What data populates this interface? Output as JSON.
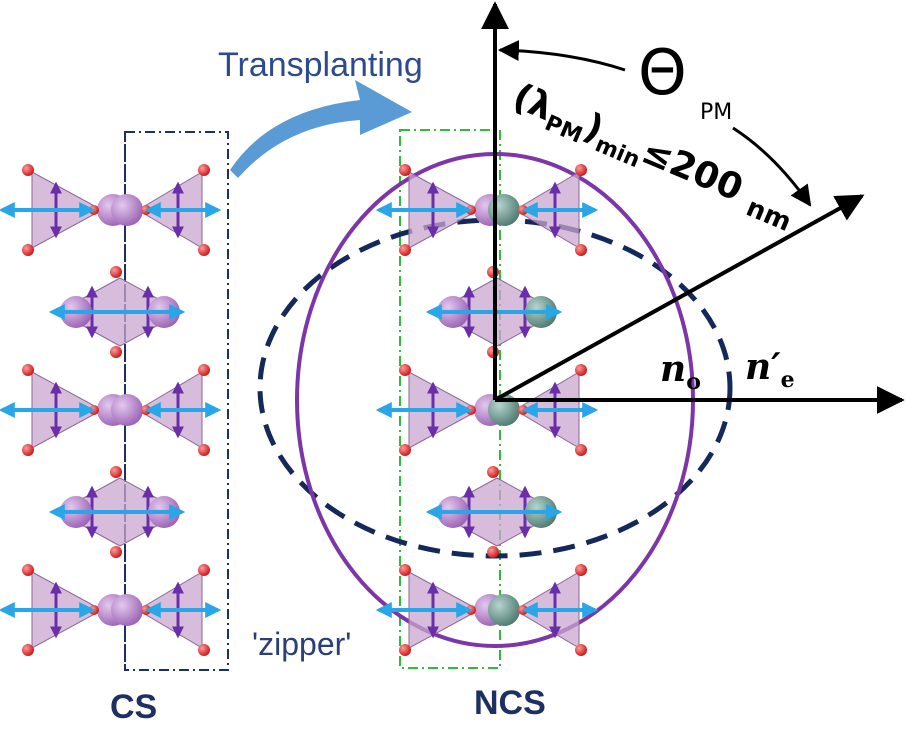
{
  "labels": {
    "transplanting": "Transplanting",
    "zipper": "'zipper'",
    "cs": "CS",
    "ncs": "NCS",
    "theta_symbol": "Θ",
    "theta_sub": "PM",
    "lambda_open": "(λ",
    "lambda_sub": "PM",
    "lambda_close": ")",
    "min_sub": "min",
    "leq_200": "≤200",
    "nm": "nm",
    "n_o": "n",
    "n_o_sub": "o",
    "n_e": "n′",
    "n_e_sub": "e"
  },
  "colors": {
    "title_blue": "#2e4a8f",
    "transplant_arrow": "#5b9bd5",
    "box_navy": "#1e2f63",
    "box_green": "#2ebd3a",
    "solid_circle": "#7d36a8",
    "dashed_ellipse": "#14285a",
    "oxygen": "#e4262a",
    "polyhedron": "#c9a6cf",
    "metal_cs": "#b07ac6",
    "metal_ncs": "#5f8c83",
    "spin_up": "#6a2ea8",
    "dipole": "#29a6e8"
  },
  "icons": {
    "transplant_arrow": "curved-arrow-icon",
    "theta_arrow": "curved-arrow-icon"
  }
}
